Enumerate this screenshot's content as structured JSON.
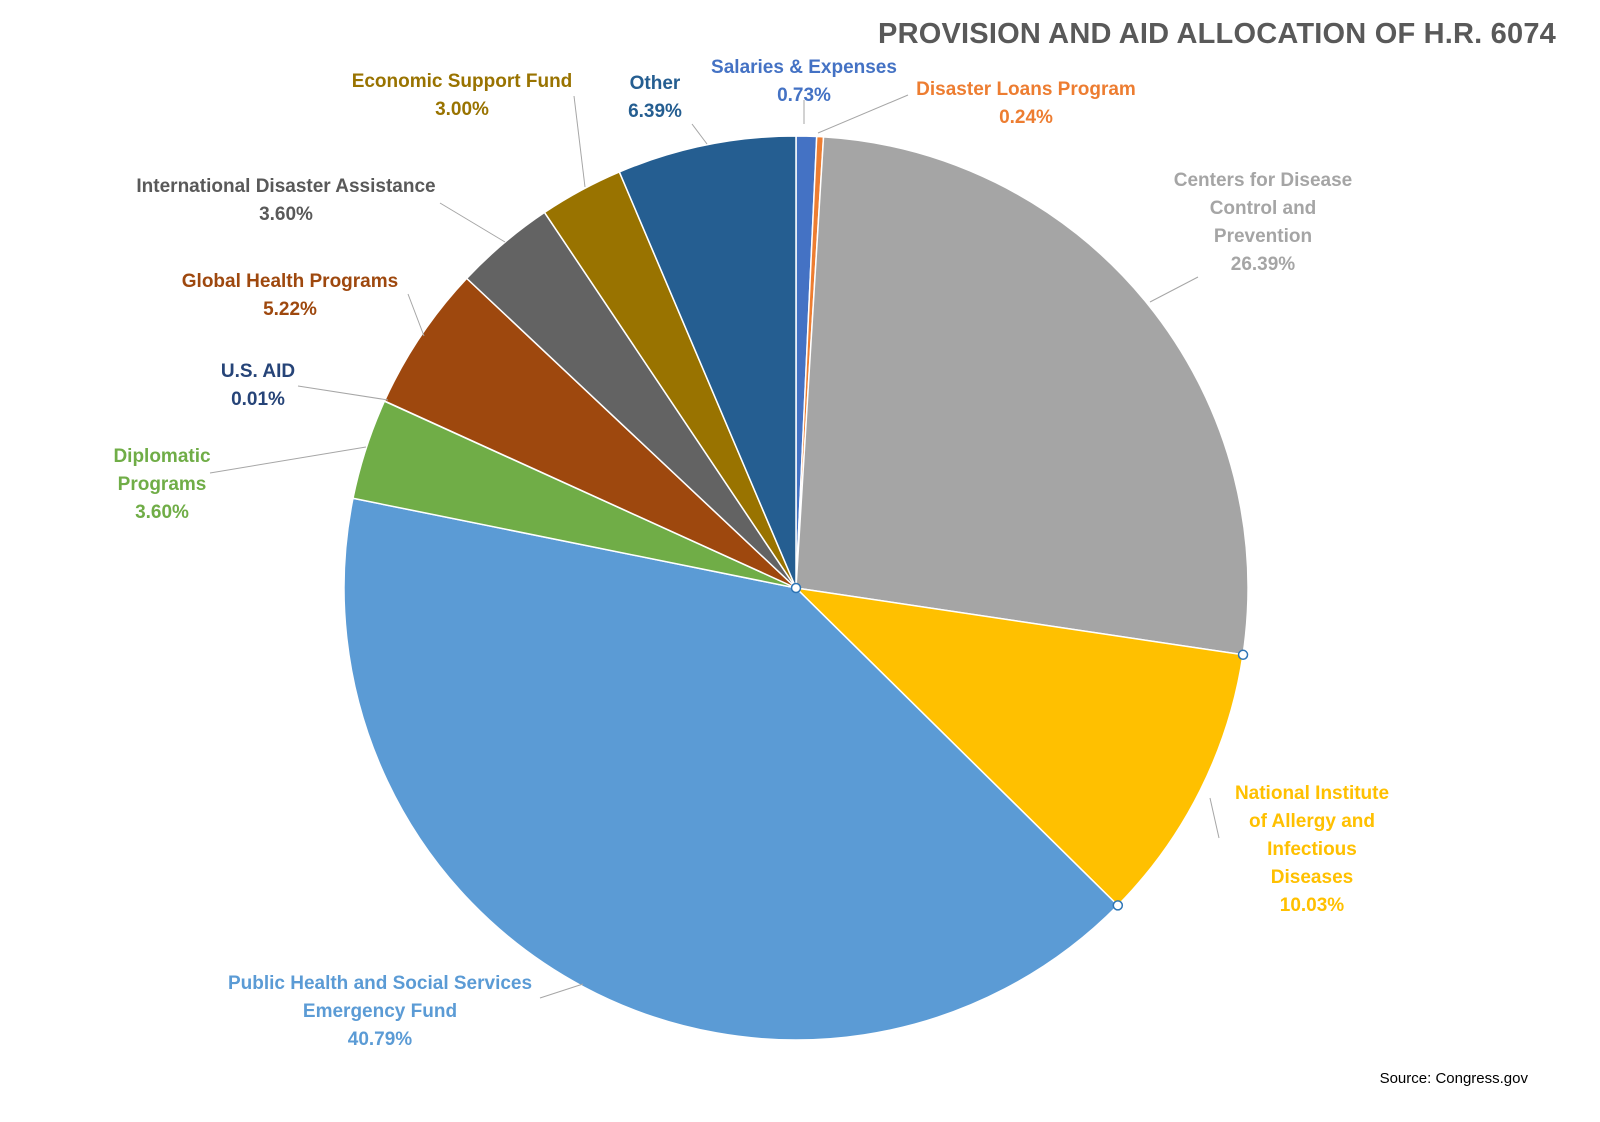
{
  "chart_data": {
    "type": "pie",
    "title": "PROVISION AND AID ALLOCATION OF H.R. 6074",
    "source": "Source: Congress.gov",
    "slices": [
      {
        "label_lines": [
          "Salaries & Expenses"
        ],
        "value": 0.73,
        "value_label": "0.73%",
        "color": "#4472C4"
      },
      {
        "label_lines": [
          "Disaster Loans Program"
        ],
        "value": 0.24,
        "value_label": "0.24%",
        "color": "#ED7D31"
      },
      {
        "label_lines": [
          "Centers for Disease",
          "Control and",
          "Prevention"
        ],
        "value": 26.39,
        "value_label": "26.39%",
        "color": "#A5A5A5"
      },
      {
        "label_lines": [
          "National Institute",
          "of Allergy and",
          "Infectious",
          "Diseases"
        ],
        "value": 10.03,
        "value_label": "10.03%",
        "color": "#FFC000"
      },
      {
        "label_lines": [
          "Public Health and Social Services",
          "Emergency Fund"
        ],
        "value": 40.79,
        "value_label": "40.79%",
        "color": "#5B9BD5"
      },
      {
        "label_lines": [
          "Diplomatic",
          "Programs"
        ],
        "value": 3.6,
        "value_label": "3.60%",
        "color": "#70AD47"
      },
      {
        "label_lines": [
          "U.S. AID"
        ],
        "value": 0.01,
        "value_label": "0.01%",
        "color": "#264478"
      },
      {
        "label_lines": [
          "Global Health Programs"
        ],
        "value": 5.22,
        "value_label": "5.22%",
        "color": "#9E480E"
      },
      {
        "label_lines": [
          "International Disaster Assistance"
        ],
        "value": 3.6,
        "value_label": "3.60%",
        "color": "#636363"
      },
      {
        "label_lines": [
          "Economic Support Fund"
        ],
        "value": 3.0,
        "value_label": "3.00%",
        "color": "#997300"
      },
      {
        "label_lines": [
          "Other"
        ],
        "value": 6.39,
        "value_label": "6.39%",
        "color": "#255E91"
      }
    ],
    "label_colors": {
      "Salaries & Expenses": "#4472C4",
      "Disaster Loans Program": "#ED7D31",
      "Centers for Disease": "#A5A5A5",
      "National Institute": "#FFC000",
      "Public Health and Social Services": "#5B9BD5",
      "Diplomatic": "#70AD47",
      "U.S. AID": "#264478",
      "Global Health Programs": "#9E480E",
      "International Disaster Assistance": "#595959",
      "Economic Support Fund": "#997300",
      "Other": "#255E91"
    }
  }
}
